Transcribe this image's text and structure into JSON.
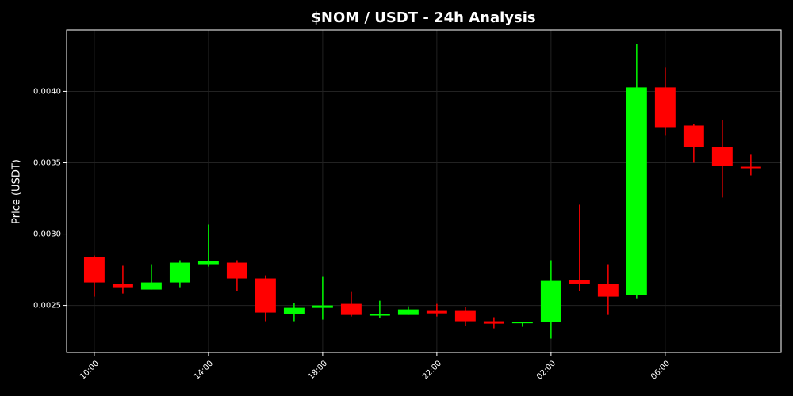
{
  "chart_data": {
    "type": "candlestick",
    "title": "$NOM / USDT - 24h Analysis",
    "y_label": "Price (USDT)",
    "categories": [
      "10:00",
      null,
      null,
      null,
      "14:00",
      null,
      null,
      null,
      "18:00",
      null,
      null,
      null,
      "22:00",
      null,
      null,
      null,
      "02:00",
      null,
      null,
      null,
      "06:00",
      null,
      null,
      null
    ],
    "open": [
      0.002839,
      0.00265,
      0.002611,
      0.002661,
      0.002789,
      0.0028,
      0.002689,
      0.002439,
      0.002483,
      0.002511,
      0.002428,
      0.002433,
      0.002461,
      0.002461,
      0.002389,
      0.002378,
      0.002383,
      0.002678,
      0.00265,
      0.002572,
      0.004028,
      0.003761,
      0.003611,
      0.003472
    ],
    "high": [
      0.00285,
      0.002778,
      0.002789,
      0.002817,
      0.003067,
      0.002817,
      0.002711,
      0.002517,
      0.0027,
      0.002594,
      0.002533,
      0.002494,
      0.002511,
      0.002489,
      0.002417,
      0.002383,
      0.002817,
      0.003206,
      0.002789,
      0.004333,
      0.004167,
      0.003772,
      0.0038,
      0.003556
    ],
    "low": [
      0.002561,
      0.002583,
      0.002611,
      0.002622,
      0.002772,
      0.0026,
      0.002389,
      0.002389,
      0.0024,
      0.002422,
      0.002411,
      0.002433,
      0.002422,
      0.002356,
      0.002339,
      0.00235,
      0.002267,
      0.0026,
      0.002433,
      0.00255,
      0.003689,
      0.0035,
      0.003256,
      0.003411
    ],
    "close": [
      0.002661,
      0.002622,
      0.002661,
      0.0028,
      0.002811,
      0.002689,
      0.00245,
      0.002483,
      0.0025,
      0.002433,
      0.002439,
      0.002472,
      0.002444,
      0.002389,
      0.002372,
      0.002383,
      0.002672,
      0.00265,
      0.002561,
      0.004028,
      0.00375,
      0.003611,
      0.003478,
      0.003461
    ],
    "up_color": "#00ff00",
    "down_color": "#ff0000",
    "ylim": [
      0.00217,
      0.00443
    ],
    "yticks": [
      {
        "value": 0.0025,
        "label": "0.0025"
      },
      {
        "value": 0.003,
        "label": "0.0030"
      },
      {
        "value": 0.0035,
        "label": "0.0035"
      },
      {
        "value": 0.004,
        "label": "0.0040"
      }
    ],
    "grid": true
  }
}
